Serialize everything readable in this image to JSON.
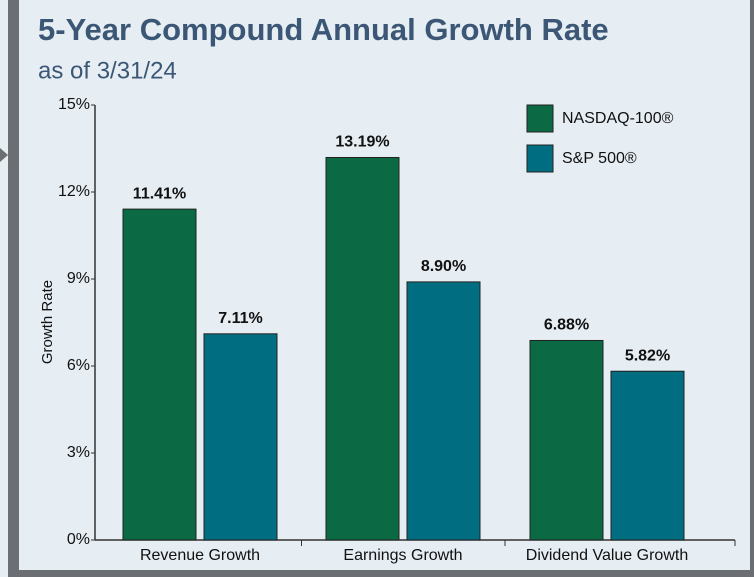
{
  "chart_data": {
    "type": "bar",
    "title": "5-Year Compound Annual Growth Rate",
    "subtitle": "as of 3/31/24",
    "y_label": "Growth Rate",
    "categories": [
      "Revenue Growth",
      "Earnings Growth",
      "Dividend Value Growth"
    ],
    "series": [
      {
        "name": "NASDAQ-100®",
        "color": "#0b6a43",
        "values": [
          11.41,
          13.19,
          6.88
        ],
        "value_labels": [
          "11.41%",
          "13.19%",
          "6.88%"
        ]
      },
      {
        "name": "S&P 500®",
        "color": "#006d80",
        "values": [
          7.11,
          8.9,
          5.82
        ],
        "value_labels": [
          "7.11%",
          "8.90%",
          "5.82%"
        ]
      }
    ],
    "ylim": [
      0,
      15
    ],
    "yticks": [
      {
        "value": 0,
        "label": "0%"
      },
      {
        "value": 3,
        "label": "3%"
      },
      {
        "value": 6,
        "label": "6%"
      },
      {
        "value": 9,
        "label": "9%"
      },
      {
        "value": 12,
        "label": "12%"
      },
      {
        "value": 15,
        "label": "15%"
      }
    ],
    "legend": "upper right"
  }
}
